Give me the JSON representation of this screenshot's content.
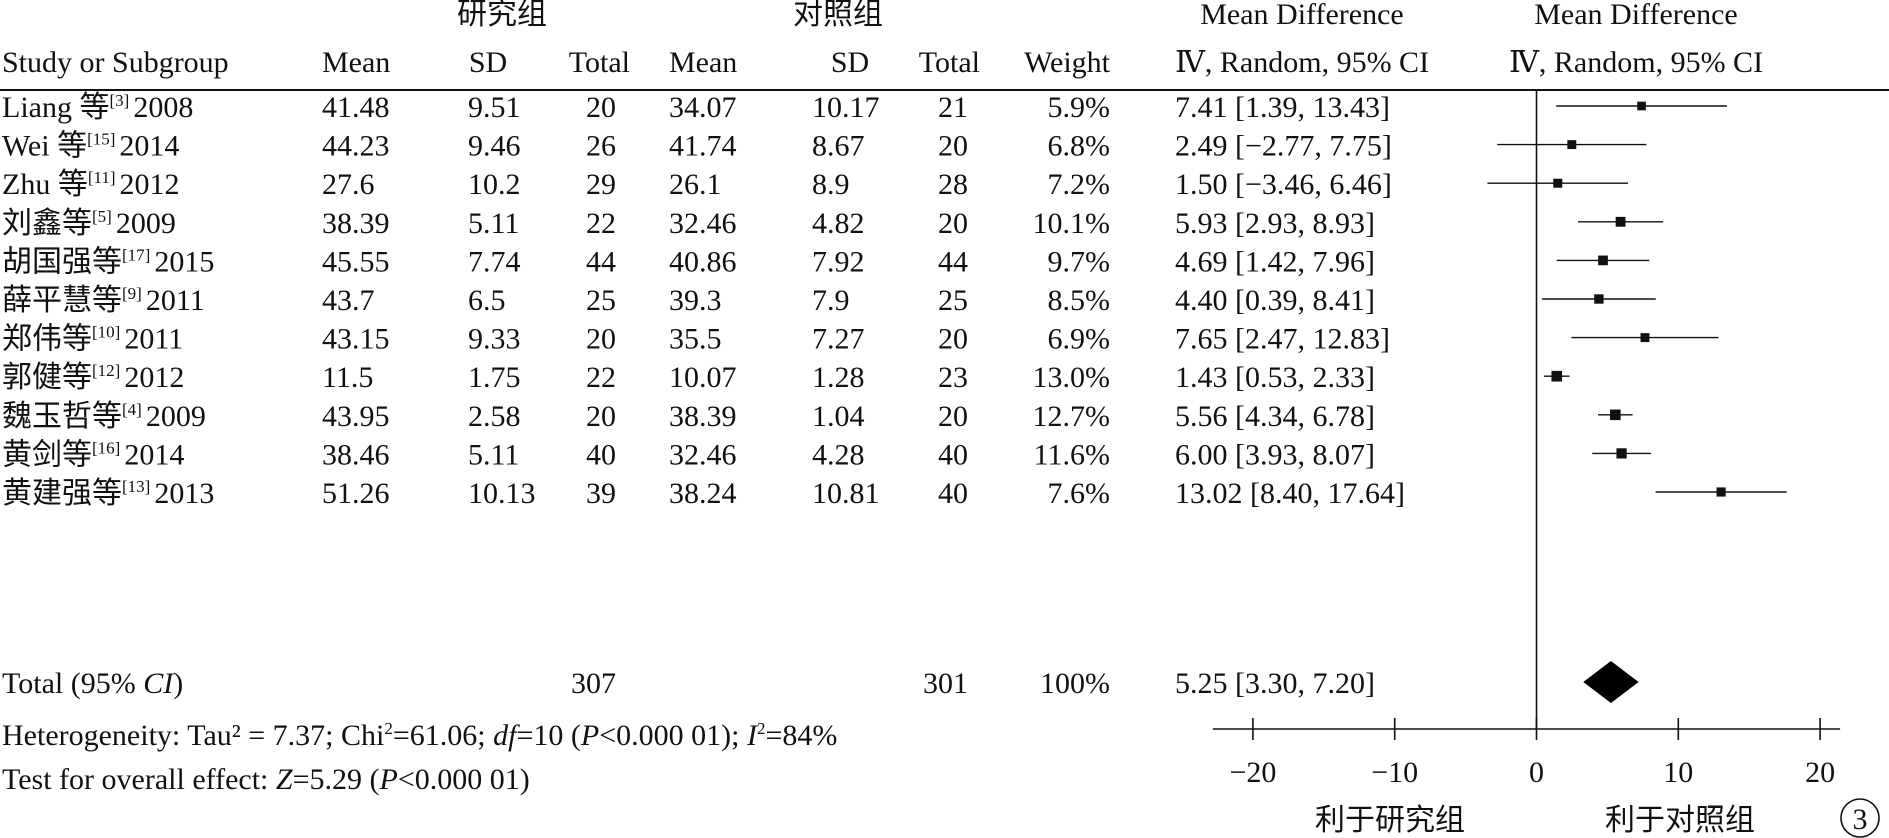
{
  "header": {
    "group1": "研究组",
    "group2": "对照组",
    "md_title": "Mean Difference",
    "md_sub": "Ⅳ, Random, 95% CI",
    "plot_title": "Mean Difference",
    "plot_sub": "Ⅳ, Random, 95% CI",
    "cols": {
      "study": "Study or Subgroup",
      "mean1": "Mean",
      "sd1": "SD",
      "total1": "Total",
      "mean2": "Mean",
      "sd2": "SD",
      "total2": "Total",
      "weight": "Weight"
    }
  },
  "studies": [
    {
      "name": "Liang 等",
      "ref": "[3]",
      "year": "2008",
      "mean1": "41.48",
      "sd1": "9.51",
      "n1": "20",
      "mean2": "34.07",
      "sd2": "10.17",
      "n2": "21",
      "weight": "5.9%",
      "ci": "7.41 [1.39, 13.43]"
    },
    {
      "name": "Wei 等",
      "ref": "[15]",
      "year": "2014",
      "mean1": "44.23",
      "sd1": "9.46",
      "n1": "26",
      "mean2": "41.74",
      "sd2": "8.67",
      "n2": "20",
      "weight": "6.8%",
      "ci": "2.49 [−2.77, 7.75]"
    },
    {
      "name": "Zhu 等",
      "ref": "[11]",
      "year": "2012",
      "mean1": "27.6",
      "sd1": "10.2",
      "n1": "29",
      "mean2": "26.1",
      "sd2": "8.9",
      "n2": "28",
      "weight": "7.2%",
      "ci": "1.50 [−3.46, 6.46]"
    },
    {
      "name": "刘鑫等",
      "ref": "[5]",
      "year": "2009",
      "mean1": "38.39",
      "sd1": "5.11",
      "n1": "22",
      "mean2": "32.46",
      "sd2": "4.82",
      "n2": "20",
      "weight": "10.1%",
      "ci": "5.93 [2.93, 8.93]"
    },
    {
      "name": "胡国强等",
      "ref": "[17]",
      "year": "2015",
      "mean1": "45.55",
      "sd1": "7.74",
      "n1": "44",
      "mean2": "40.86",
      "sd2": "7.92",
      "n2": "44",
      "weight": "9.7%",
      "ci": "4.69 [1.42, 7.96]"
    },
    {
      "name": "薛平慧等",
      "ref": "[9]",
      "year": "2011",
      "mean1": "43.7",
      "sd1": "6.5",
      "n1": "25",
      "mean2": "39.3",
      "sd2": "7.9",
      "n2": "25",
      "weight": "8.5%",
      "ci": "4.40 [0.39, 8.41]"
    },
    {
      "name": "郑伟等",
      "ref": "[10]",
      "year": "2011",
      "mean1": "43.15",
      "sd1": "9.33",
      "n1": "20",
      "mean2": "35.5",
      "sd2": "7.27",
      "n2": "20",
      "weight": "6.9%",
      "ci": "7.65 [2.47, 12.83]"
    },
    {
      "name": "郭健等",
      "ref": "[12]",
      "year": "2012",
      "mean1": "11.5",
      "sd1": "1.75",
      "n1": "22",
      "mean2": "10.07",
      "sd2": "1.28",
      "n2": "23",
      "weight": "13.0%",
      "ci": "1.43 [0.53, 2.33]"
    },
    {
      "name": "魏玉哲等",
      "ref": "[4]",
      "year": "2009",
      "mean1": "43.95",
      "sd1": "2.58",
      "n1": "20",
      "mean2": "38.39",
      "sd2": "1.04",
      "n2": "20",
      "weight": "12.7%",
      "ci": "5.56 [4.34, 6.78]"
    },
    {
      "name": "黄剑等",
      "ref": "[16]",
      "year": "2014",
      "mean1": "38.46",
      "sd1": "5.11",
      "n1": "40",
      "mean2": "32.46",
      "sd2": "4.28",
      "n2": "40",
      "weight": "11.6%",
      "ci": "6.00 [3.93, 8.07]"
    },
    {
      "name": "黄建强等",
      "ref": "[13]",
      "year": "2013",
      "mean1": "51.26",
      "sd1": "10.13",
      "n1": "39",
      "mean2": "38.24",
      "sd2": "10.81",
      "n2": "40",
      "weight": "7.6%",
      "ci": "13.02 [8.40, 17.64]"
    }
  ],
  "total": {
    "label_prefix": "Total (95% ",
    "label_ci": "CI",
    "label_suffix": ")",
    "n1": "307",
    "n2": "301",
    "weight": "100%",
    "ci": "5.25 [3.30, 7.20]"
  },
  "heterogeneity": {
    "a": "Heterogeneity: Tau² = 7.37; Chi",
    "sup2": "2",
    "b": "=61.06; ",
    "df": "df",
    "c": "=10 (",
    "p": "P",
    "d": "<0.000 01); ",
    "i": "I",
    "sup2b": "2",
    "e": "=84%"
  },
  "overall": {
    "a": "Test for overall effect: ",
    "z": "Z",
    "b": "=5.29 (",
    "p": "P",
    "c": "<0.000 01)"
  },
  "axis": {
    "favours_left": "利于研究组",
    "favours_right": "利于对照组",
    "badge": "3"
  },
  "chart_data": {
    "type": "forest",
    "xlim": [
      -20,
      20
    ],
    "xticks": [
      -20,
      -10,
      0,
      10,
      20
    ],
    "xtick_labels": [
      "−20",
      "−10",
      "0",
      "10",
      "20"
    ],
    "studies": [
      {
        "md": 7.41,
        "lo": 1.39,
        "hi": 13.43,
        "weight": 5.9
      },
      {
        "md": 2.49,
        "lo": -2.77,
        "hi": 7.75,
        "weight": 6.8
      },
      {
        "md": 1.5,
        "lo": -3.46,
        "hi": 6.46,
        "weight": 7.2
      },
      {
        "md": 5.93,
        "lo": 2.93,
        "hi": 8.93,
        "weight": 10.1
      },
      {
        "md": 4.69,
        "lo": 1.42,
        "hi": 7.96,
        "weight": 9.7
      },
      {
        "md": 4.4,
        "lo": 0.39,
        "hi": 8.41,
        "weight": 8.5
      },
      {
        "md": 7.65,
        "lo": 2.47,
        "hi": 12.83,
        "weight": 6.9
      },
      {
        "md": 1.43,
        "lo": 0.53,
        "hi": 2.33,
        "weight": 13.0
      },
      {
        "md": 5.56,
        "lo": 4.34,
        "hi": 6.78,
        "weight": 12.7
      },
      {
        "md": 6.0,
        "lo": 3.93,
        "hi": 8.07,
        "weight": 11.6
      },
      {
        "md": 13.02,
        "lo": 8.4,
        "hi": 17.64,
        "weight": 7.6
      }
    ],
    "pooled": {
      "md": 5.25,
      "lo": 3.3,
      "hi": 7.2
    }
  }
}
